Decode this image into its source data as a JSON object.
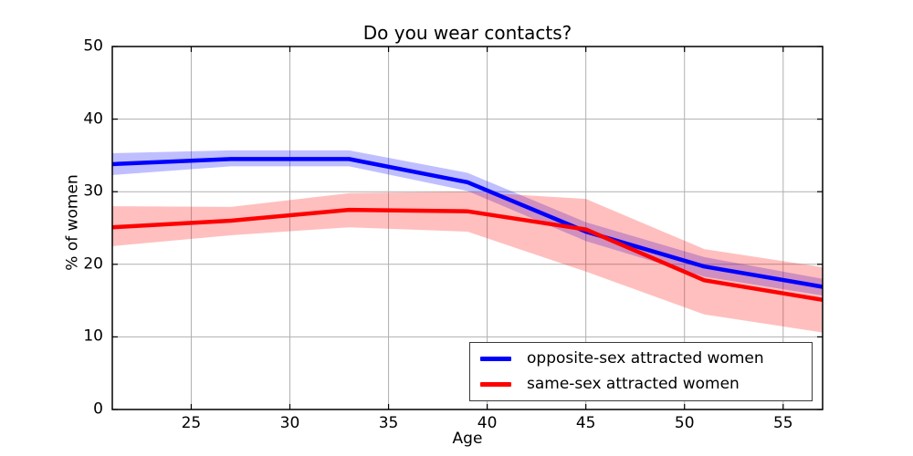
{
  "chart_data": {
    "type": "line",
    "title": "Do you wear contacts?",
    "xlabel": "Age",
    "ylabel": "% of women",
    "x": [
      21,
      27,
      33,
      39,
      45,
      51,
      57
    ],
    "xlim": [
      21,
      57
    ],
    "ylim": [
      0,
      50
    ],
    "xticks": [
      25,
      30,
      35,
      40,
      45,
      50,
      55
    ],
    "yticks": [
      0,
      10,
      20,
      30,
      40,
      50
    ],
    "grid": true,
    "grid_color": "#b0b0b0",
    "legend_position": "lower right",
    "band_opacity": 0.25,
    "series": [
      {
        "name": "opposite-sex attracted women",
        "color": "#0000ff",
        "values": [
          33.8,
          34.5,
          34.5,
          31.3,
          24.5,
          19.7,
          16.9
        ],
        "band_upper": [
          35.3,
          35.7,
          35.7,
          32.6,
          25.8,
          21.0,
          18.0
        ],
        "band_lower": [
          32.3,
          33.5,
          33.5,
          30.1,
          23.2,
          18.3,
          15.7
        ]
      },
      {
        "name": "same-sex attracted women",
        "color": "#ff0000",
        "values": [
          25.1,
          26.0,
          27.5,
          27.3,
          24.8,
          17.8,
          15.1
        ],
        "band_upper": [
          28.0,
          27.9,
          29.8,
          30.0,
          29.0,
          22.1,
          19.6
        ],
        "band_lower": [
          22.5,
          24.0,
          25.1,
          24.5,
          19.0,
          13.1,
          10.6
        ]
      }
    ]
  }
}
